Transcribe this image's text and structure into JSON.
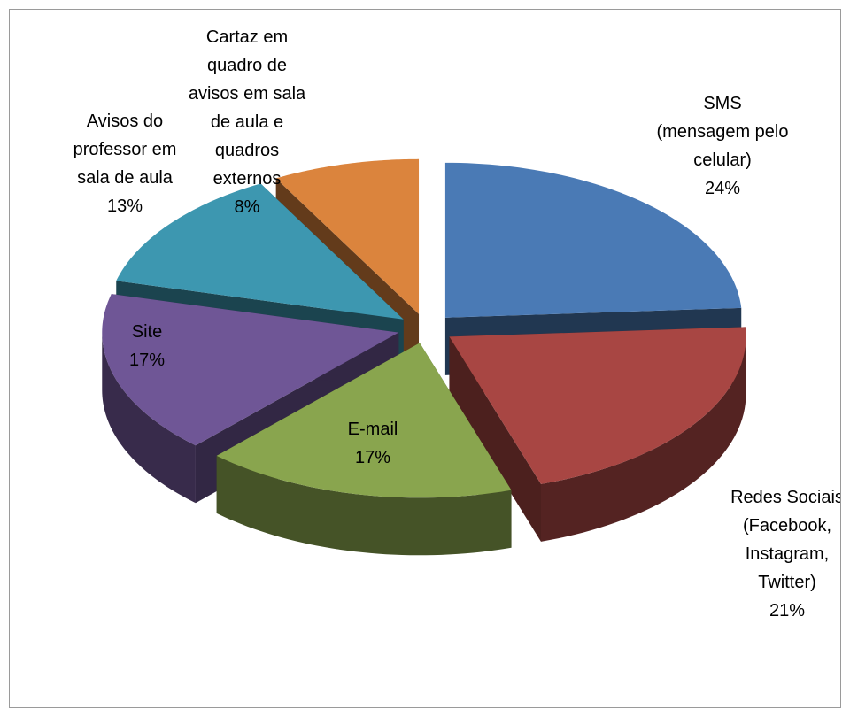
{
  "chart_data": {
    "type": "pie",
    "categories": [
      "SMS (mensagem pelo celular)",
      "Redes Sociais (Facebook, Instagram, Twitter)",
      "E-mail",
      "Site",
      "Avisos do professor em sala de aula",
      "Cartaz em quadro de avisos em sala de aula e quadros externos"
    ],
    "values": [
      24,
      21,
      17,
      17,
      13,
      8
    ],
    "value_labels": [
      "24%",
      "21%",
      "17%",
      "17%",
      "13%",
      "8%"
    ],
    "colors": [
      "#4a7ab5",
      "#a84643",
      "#89a54e",
      "#6f5696",
      "#3d97b0",
      "#db843d"
    ]
  }
}
